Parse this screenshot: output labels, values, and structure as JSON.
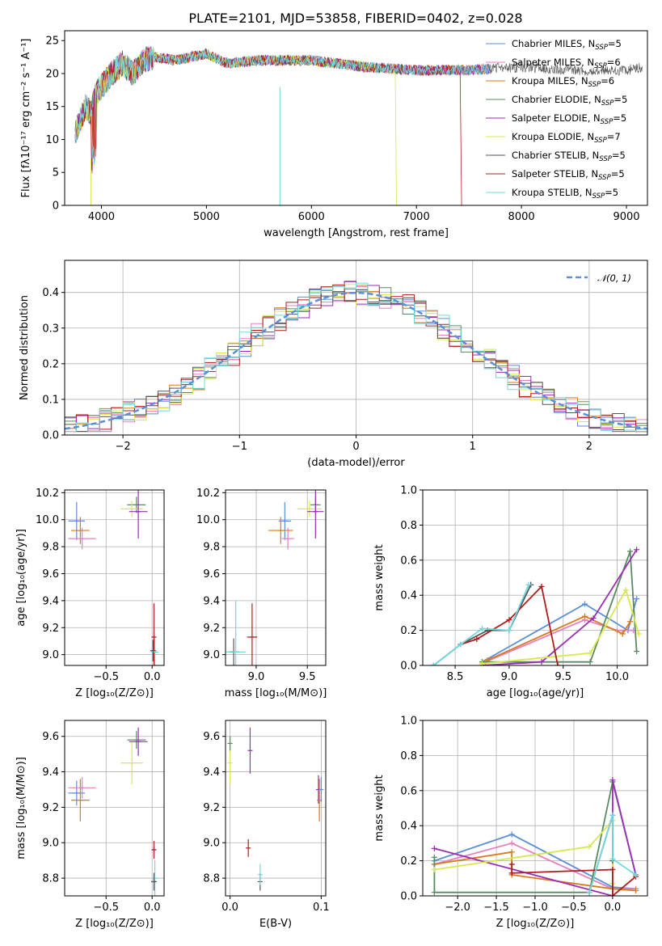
{
  "figure": {
    "title": "PLATE=2101, MJD=53858, FIBERID=0402, z=0.028"
  },
  "legend": [
    {
      "label": "Chabrier MILES, N",
      "sub": "SSP",
      "tail": "=5",
      "color": "#5b8fd9"
    },
    {
      "label": "Salpeter MILES, N",
      "sub": "SSP",
      "tail": "=6",
      "color": "#e87fbf"
    },
    {
      "label": "Kroupa MILES, N",
      "sub": "SSP",
      "tail": "=6",
      "color": "#d87a1e"
    },
    {
      "label": "Chabrier ELODIE, N",
      "sub": "SSP",
      "tail": "=5",
      "color": "#5a8a62"
    },
    {
      "label": "Salpeter ELODIE, N",
      "sub": "SSP",
      "tail": "=5",
      "color": "#9a2fb5"
    },
    {
      "label": "Kroupa ELODIE, N",
      "sub": "SSP",
      "tail": "=7",
      "color": "#d8e84a"
    },
    {
      "label": "Chabrier STELIB, N",
      "sub": "SSP",
      "tail": "=5",
      "color": "#555555"
    },
    {
      "label": "Salpeter STELIB, N",
      "sub": "SSP",
      "tail": "=5",
      "color": "#b01c1c"
    },
    {
      "label": "Kroupa STELIB, N",
      "sub": "SSP",
      "tail": "=5",
      "color": "#72d8e0"
    }
  ],
  "normal_legend": "𝒩(0, 1)",
  "chart_data": [
    {
      "id": "spectrum",
      "type": "line",
      "title": "PLATE=2101, MJD=53858, FIBERID=0402, z=0.028",
      "xlabel": "wavelength [Angstrom, rest frame]",
      "ylabel": "Flux [fλ10⁻¹⁷ erg cm⁻² s⁻¹ A⁻¹]",
      "xlim": [
        3650,
        9200
      ],
      "ylim": [
        0,
        26.5
      ],
      "xticks": [
        4000,
        5000,
        6000,
        7000,
        8000,
        9000
      ],
      "yticks": [
        0,
        5,
        10,
        15,
        20,
        25
      ],
      "envelope": [
        [
          3750,
          11
        ],
        [
          3800,
          13
        ],
        [
          3850,
          15
        ],
        [
          3900,
          14
        ],
        [
          3950,
          17
        ],
        [
          4000,
          18
        ],
        [
          4100,
          20
        ],
        [
          4200,
          21.5
        ],
        [
          4300,
          20
        ],
        [
          4400,
          22
        ],
        [
          4500,
          22.5
        ],
        [
          4700,
          22
        ],
        [
          5000,
          23
        ],
        [
          5200,
          21.5
        ],
        [
          5500,
          22
        ],
        [
          6000,
          22
        ],
        [
          6500,
          21
        ],
        [
          7000,
          20.5
        ],
        [
          7500,
          20.5
        ],
        [
          8000,
          21
        ],
        [
          8500,
          20.5
        ],
        [
          9000,
          20.5
        ],
        [
          9150,
          21
        ]
      ]
    },
    {
      "id": "residuals",
      "type": "histogram",
      "xlabel": "(data-model)/error",
      "ylabel": "Normed distribution",
      "xlim": [
        -2.5,
        2.5
      ],
      "ylim": [
        0,
        0.49
      ],
      "xticks": [
        -2,
        -1,
        0,
        1,
        2
      ],
      "yticks": [
        0.0,
        0.1,
        0.2,
        0.3,
        0.4
      ],
      "bin_width": 0.1,
      "normal": {
        "mean": 0,
        "sigma": 1
      }
    },
    {
      "id": "age_vs_Z",
      "type": "scatter",
      "xlabel": "Z [log₁₀(Z/Z⊙)]",
      "ylabel": "age  [log₁₀(age/yr)]",
      "xlim": [
        -0.95,
        0.13
      ],
      "ylim": [
        8.92,
        10.22
      ],
      "xticks": [
        -0.5,
        0.0
      ],
      "yticks": [
        9.0,
        9.2,
        9.4,
        9.6,
        9.8,
        10.0,
        10.2
      ],
      "points": [
        {
          "x": -0.82,
          "y": 9.99,
          "xerr": 0.09,
          "yerr": 0.14,
          "s": 0
        },
        {
          "x": -0.78,
          "y": 9.92,
          "xerr": 0.1,
          "yerr": 0.1,
          "s": 2
        },
        {
          "x": -0.76,
          "y": 9.86,
          "xerr": 0.15,
          "yerr": 0.08,
          "s": 1
        },
        {
          "x": -0.17,
          "y": 10.11,
          "xerr": 0.1,
          "yerr": 0.06,
          "s": 3
        },
        {
          "x": -0.22,
          "y": 10.08,
          "xerr": 0.12,
          "yerr": 0.06,
          "s": 5
        },
        {
          "x": -0.15,
          "y": 10.06,
          "xerr": 0.1,
          "yerr": 0.2,
          "s": 4
        },
        {
          "x": 0.02,
          "y": 9.13,
          "xerr": 0.02,
          "yerr": 0.25,
          "s": 7
        },
        {
          "x": 0.03,
          "y": 9.02,
          "xerr": 0.04,
          "yerr": 0.1,
          "s": 8
        },
        {
          "x": 0.01,
          "y": 9.03,
          "xerr": 0.03,
          "yerr": 0.08,
          "s": 6
        }
      ]
    },
    {
      "id": "age_vs_mass",
      "type": "scatter",
      "xlabel": "mass [log₁₀(M/M⊙)]",
      "ylabel": "",
      "xlim": [
        8.7,
        9.68
      ],
      "ylim": [
        8.92,
        10.22
      ],
      "xticks": [
        9.0,
        9.5
      ],
      "yticks": [
        9.0,
        9.2,
        9.4,
        9.6,
        9.8,
        10.0,
        10.2
      ],
      "points": [
        {
          "x": 9.28,
          "y": 9.99,
          "xerr": 0.06,
          "yerr": 0.14,
          "s": 0
        },
        {
          "x": 9.24,
          "y": 9.92,
          "xerr": 0.12,
          "yerr": 0.1,
          "s": 2
        },
        {
          "x": 9.31,
          "y": 9.86,
          "xerr": 0.06,
          "yerr": 0.08,
          "s": 1
        },
        {
          "x": 9.58,
          "y": 10.11,
          "xerr": 0.05,
          "yerr": 0.06,
          "s": 3
        },
        {
          "x": 9.52,
          "y": 10.08,
          "xerr": 0.12,
          "yerr": 0.06,
          "s": 5
        },
        {
          "x": 9.58,
          "y": 10.06,
          "xerr": 0.08,
          "yerr": 0.2,
          "s": 4
        },
        {
          "x": 8.96,
          "y": 9.13,
          "xerr": 0.05,
          "yerr": 0.25,
          "s": 7
        },
        {
          "x": 8.78,
          "y": 9.02,
          "xerr": 0.05,
          "yerr": 0.1,
          "s": 6
        },
        {
          "x": 8.8,
          "y": 9.02,
          "xerr": 0.1,
          "yerr": 0.38,
          "s": 8
        }
      ]
    },
    {
      "id": "weight_vs_age",
      "type": "line",
      "xlabel": "age  [log₁₀(age/yr)]",
      "ylabel": "mass weight",
      "xlim": [
        8.2,
        10.28
      ],
      "ylim": [
        0,
        1.0
      ],
      "xticks": [
        8.5,
        9.0,
        9.5,
        10.0
      ],
      "yticks": [
        0.0,
        0.2,
        0.4,
        0.6,
        0.8,
        1.0
      ],
      "series": [
        {
          "s": 0,
          "x": [
            8.75,
            9.7,
            10.1,
            10.18
          ],
          "y": [
            0.02,
            0.35,
            0.2,
            0.38
          ]
        },
        {
          "s": 1,
          "x": [
            8.78,
            9.7,
            10.0,
            10.15
          ],
          "y": [
            0.02,
            0.26,
            0.2,
            0.2
          ]
        },
        {
          "s": 2,
          "x": [
            8.8,
            9.7,
            10.05,
            10.12
          ],
          "y": [
            0.03,
            0.28,
            0.18,
            0.25
          ]
        },
        {
          "s": 3,
          "x": [
            8.75,
            9.75,
            10.12,
            10.18
          ],
          "y": [
            0.02,
            0.02,
            0.65,
            0.08
          ]
        },
        {
          "s": 4,
          "x": [
            8.75,
            9.3,
            9.78,
            10.18
          ],
          "y": [
            0.0,
            0.02,
            0.27,
            0.66
          ]
        },
        {
          "s": 5,
          "x": [
            8.75,
            9.75,
            10.08,
            10.2
          ],
          "y": [
            0.01,
            0.07,
            0.43,
            0.18
          ]
        },
        {
          "s": 6,
          "x": [
            8.3,
            8.55,
            8.8,
            9.0,
            9.2
          ],
          "y": [
            0.0,
            0.12,
            0.2,
            0.2,
            0.46
          ]
        },
        {
          "s": 7,
          "x": [
            8.55,
            8.7,
            9.0,
            9.3,
            9.45
          ],
          "y": [
            0.12,
            0.15,
            0.26,
            0.45,
            0.0
          ]
        },
        {
          "s": 8,
          "x": [
            8.3,
            8.55,
            8.75,
            9.0,
            9.18
          ],
          "y": [
            0.0,
            0.12,
            0.21,
            0.2,
            0.46
          ]
        }
      ]
    },
    {
      "id": "mass_vs_Z",
      "type": "scatter",
      "xlabel": "Z [log₁₀(Z/Z⊙)]",
      "ylabel": "mass [log₁₀(M/M⊙)]",
      "xlim": [
        -0.95,
        0.13
      ],
      "ylim": [
        8.7,
        9.69
      ],
      "xticks": [
        -0.5,
        0.0
      ],
      "yticks": [
        8.8,
        9.0,
        9.2,
        9.4,
        9.6
      ],
      "points": [
        {
          "x": -0.82,
          "y": 9.28,
          "xerr": 0.09,
          "yerr": 0.07,
          "s": 0
        },
        {
          "x": -0.78,
          "y": 9.24,
          "xerr": 0.1,
          "yerr": 0.12,
          "s": 2
        },
        {
          "x": -0.76,
          "y": 9.31,
          "xerr": 0.15,
          "yerr": 0.06,
          "s": 1
        },
        {
          "x": -0.17,
          "y": 9.58,
          "xerr": 0.1,
          "yerr": 0.05,
          "s": 3
        },
        {
          "x": -0.22,
          "y": 9.45,
          "xerr": 0.12,
          "yerr": 0.12,
          "s": 5
        },
        {
          "x": -0.15,
          "y": 9.57,
          "xerr": 0.1,
          "yerr": 0.08,
          "s": 4
        },
        {
          "x": 0.02,
          "y": 8.96,
          "xerr": 0.02,
          "yerr": 0.05,
          "s": 7
        },
        {
          "x": 0.03,
          "y": 8.8,
          "xerr": 0.04,
          "yerr": 0.1,
          "s": 8
        },
        {
          "x": 0.02,
          "y": 8.78,
          "xerr": 0.03,
          "yerr": 0.05,
          "s": 6
        }
      ]
    },
    {
      "id": "mass_vs_ebv",
      "type": "scatter",
      "xlabel": "E(B-V)",
      "ylabel": "",
      "xlim": [
        -0.005,
        0.105
      ],
      "ylim": [
        8.7,
        9.69
      ],
      "xticks": [
        0.0,
        0.1
      ],
      "yticks": [
        8.8,
        9.0,
        9.2,
        9.4,
        9.6
      ],
      "points": [
        {
          "x": 0.0,
          "y": 9.45,
          "xerr": 0,
          "yerr": 0.12,
          "s": 5
        },
        {
          "x": 0.0,
          "y": 9.56,
          "xerr": 0,
          "yerr": 0.04,
          "s": 3
        },
        {
          "x": 0.022,
          "y": 9.52,
          "xerr": 0,
          "yerr": 0.13,
          "s": 4
        },
        {
          "x": 0.02,
          "y": 8.97,
          "xerr": 0,
          "yerr": 0.05,
          "s": 7
        },
        {
          "x": 0.033,
          "y": 8.78,
          "xerr": 0,
          "yerr": 0.05,
          "s": 6
        },
        {
          "x": 0.033,
          "y": 8.82,
          "xerr": 0,
          "yerr": 0.06,
          "s": 8
        },
        {
          "x": 0.097,
          "y": 9.3,
          "xerr": 0,
          "yerr": 0.08,
          "s": 4
        },
        {
          "x": 0.098,
          "y": 9.24,
          "xerr": 0,
          "yerr": 0.12,
          "s": 2
        },
        {
          "x": 0.1,
          "y": 9.3,
          "xerr": 0,
          "yerr": 0.07,
          "s": 0
        }
      ]
    },
    {
      "id": "weight_vs_Z",
      "type": "line",
      "xlabel": "Z [log₁₀(Z/Z⊙)]",
      "ylabel": "mass weight",
      "xlim": [
        -2.45,
        0.45
      ],
      "ylim": [
        0,
        1.0
      ],
      "xticks": [
        -2.0,
        -1.5,
        -1.0,
        -0.5,
        0.0
      ],
      "yticks": [
        0.0,
        0.2,
        0.4,
        0.6,
        0.8,
        1.0
      ],
      "series": [
        {
          "s": 0,
          "x": [
            -2.3,
            -1.3,
            0.0,
            0.3
          ],
          "y": [
            0.2,
            0.35,
            0.05,
            0.04
          ]
        },
        {
          "s": 1,
          "x": [
            -2.3,
            -1.3,
            0.0,
            0.3
          ],
          "y": [
            0.18,
            0.3,
            0.04,
            0.04
          ]
        },
        {
          "s": 2,
          "x": [
            -2.3,
            -1.3,
            -1.3,
            0.0,
            0.3
          ],
          "y": [
            0.18,
            0.25,
            0.12,
            0.04,
            0.03
          ]
        },
        {
          "s": 3,
          "x": [
            -2.3,
            -2.3,
            -0.3,
            0.0,
            0.3
          ],
          "y": [
            0.22,
            0.02,
            0.02,
            0.65,
            0.12
          ]
        },
        {
          "s": 4,
          "x": [
            -2.3,
            0.0,
            0.0,
            0.3
          ],
          "y": [
            0.27,
            0.0,
            0.66,
            0.12
          ]
        },
        {
          "s": 5,
          "x": [
            -2.3,
            -0.3,
            0.0,
            0.0
          ],
          "y": [
            0.15,
            0.28,
            0.43,
            0.07
          ]
        },
        {
          "s": 6,
          "x": [
            -0.3,
            0.0,
            0.0
          ],
          "y": [
            0.02,
            0.46,
            0.2
          ]
        },
        {
          "s": 7,
          "x": [
            -1.3,
            -1.3,
            0.0,
            0.0,
            0.3
          ],
          "y": [
            0.18,
            0.13,
            0.15,
            0.0,
            0.11
          ]
        },
        {
          "s": 8,
          "x": [
            -0.3,
            0.0,
            0.0,
            0.3
          ],
          "y": [
            0.02,
            0.46,
            0.21,
            0.12
          ]
        }
      ]
    }
  ]
}
